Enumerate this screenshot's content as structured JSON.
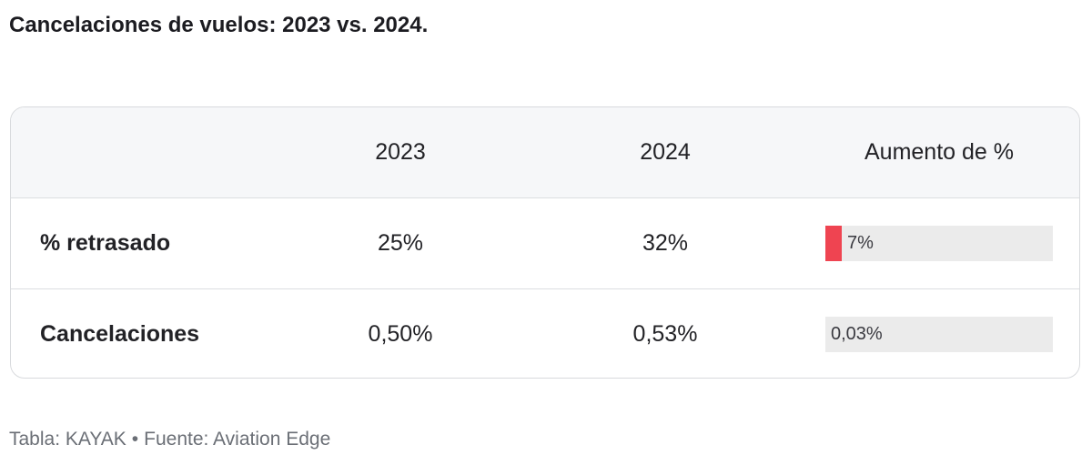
{
  "title": "Cancelaciones de vuelos: 2023 vs. 2024.",
  "footer": {
    "table_credit": "Tabla: KAYAK",
    "separator": "•",
    "source": "Fuente: Aviation Edge"
  },
  "chart_data": {
    "type": "table",
    "columns": [
      "",
      "2023",
      "2024",
      "Aumento de %"
    ],
    "rows": [
      {
        "label": "% retrasado",
        "v2023": "25%",
        "v2024": "32%",
        "increase_label": "7%",
        "increase_value": 7
      },
      {
        "label": "Cancelaciones",
        "v2023": "0,50%",
        "v2024": "0,53%",
        "increase_label": "0,03%",
        "increase_value": 0.03
      }
    ],
    "bar_max": 100,
    "bar_color": "#ef4451",
    "bar_track_color": "#ebebeb"
  }
}
